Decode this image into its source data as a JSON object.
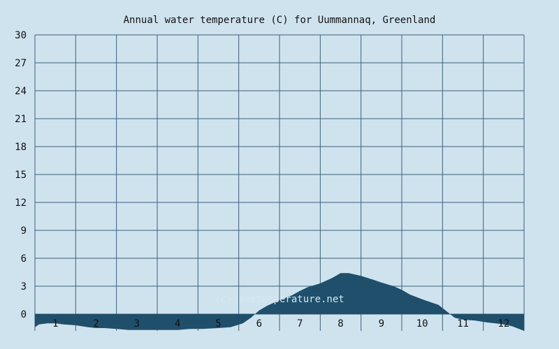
{
  "chart_data": {
    "type": "area",
    "title": "Annual water temperature (C) for Uummannaq, Greenland",
    "watermark": "(c) seatemperature.net",
    "xlabel": "",
    "ylabel": "",
    "x_ticks": [
      "1",
      "2",
      "3",
      "4",
      "5",
      "6",
      "7",
      "8",
      "9",
      "10",
      "11",
      "12"
    ],
    "y_ticks": [
      "30",
      "27",
      "24",
      "21",
      "18",
      "15",
      "12",
      "9",
      "6",
      "3",
      "0"
    ],
    "xlim": [
      0.5,
      12.5
    ],
    "ylim": [
      -1.8,
      30
    ],
    "grid": true,
    "fill_color": "#1f4f6b",
    "background_color": "#cfe3ef",
    "grid_color": "#3d5f78",
    "series": [
      {
        "x": [
          0.5,
          0.6,
          0.8,
          1.0,
          1.2,
          1.5,
          1.8,
          2.0,
          2.2,
          2.5,
          2.8,
          3.0,
          3.3,
          3.6,
          4.0,
          4.3,
          4.6,
          5.0,
          5.3,
          5.6,
          5.8,
          6.0,
          6.2,
          6.5,
          6.8,
          7.0,
          7.2,
          7.5,
          7.8,
          8.0,
          8.2,
          8.5,
          8.8,
          9.0,
          9.3,
          9.5,
          9.7,
          10.0,
          10.2,
          10.4,
          10.6,
          10.8,
          11.0,
          11.3,
          11.6,
          11.8,
          12.0,
          12.2,
          12.5
        ],
        "y": [
          -1.4,
          -1.1,
          -1.0,
          -1.0,
          -1.1,
          -1.2,
          -1.4,
          -1.5,
          -1.5,
          -1.6,
          -1.7,
          -1.7,
          -1.7,
          -1.7,
          -1.7,
          -1.6,
          -1.6,
          -1.5,
          -1.4,
          -1.0,
          -0.4,
          0.4,
          0.9,
          1.5,
          2.0,
          2.5,
          2.9,
          3.3,
          3.9,
          4.4,
          4.4,
          4.1,
          3.7,
          3.4,
          3.0,
          2.6,
          2.1,
          1.6,
          1.3,
          1.0,
          0.3,
          -0.4,
          -0.6,
          -0.7,
          -0.9,
          -1.0,
          -1.1,
          -1.3,
          -1.8
        ]
      }
    ]
  }
}
